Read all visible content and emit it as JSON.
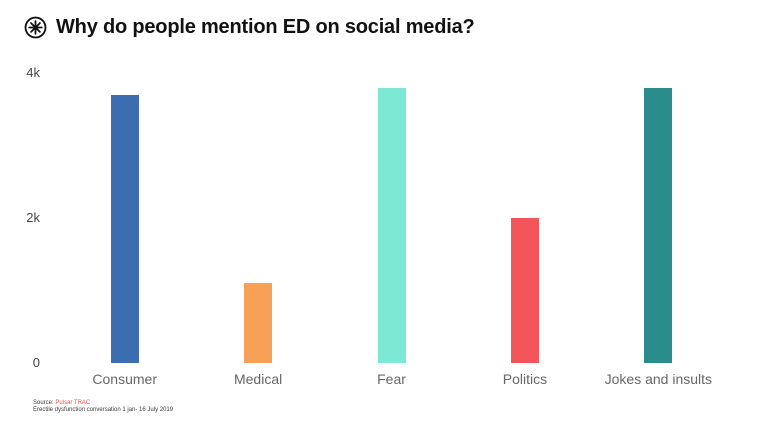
{
  "header": {
    "title": "Why do people mention ED on social media?",
    "icon": "circled-asterisk-icon"
  },
  "chart_data": {
    "type": "bar",
    "title": "Why do people mention ED on social media?",
    "categories": [
      "Consumer",
      "Medical",
      "Fear",
      "Politics",
      "Jokes and insults"
    ],
    "values": [
      3700,
      1100,
      3800,
      2000,
      3800
    ],
    "colors": [
      "#3d6db1",
      "#f7a156",
      "#7de8d3",
      "#f4555a",
      "#2b8d8b"
    ],
    "xlabel": "",
    "ylabel": "",
    "ylim": [
      0,
      4000
    ],
    "yticks": [
      {
        "value": 0,
        "label": "0"
      },
      {
        "value": 2000,
        "label": "2k"
      },
      {
        "value": 4000,
        "label": "4k"
      }
    ],
    "grid": false,
    "legend": "none"
  },
  "footer": {
    "source_prefix": "Source:",
    "source_name": "Pulsar TRAC",
    "subtitle": "Erectile dysfunction conversation 1 jan- 16 July 2019"
  },
  "colors": {
    "background": "#ffffff",
    "title_text": "#121212",
    "tick_text": "#454545",
    "category_text": "#666666",
    "source_accent": "#e8564c"
  }
}
